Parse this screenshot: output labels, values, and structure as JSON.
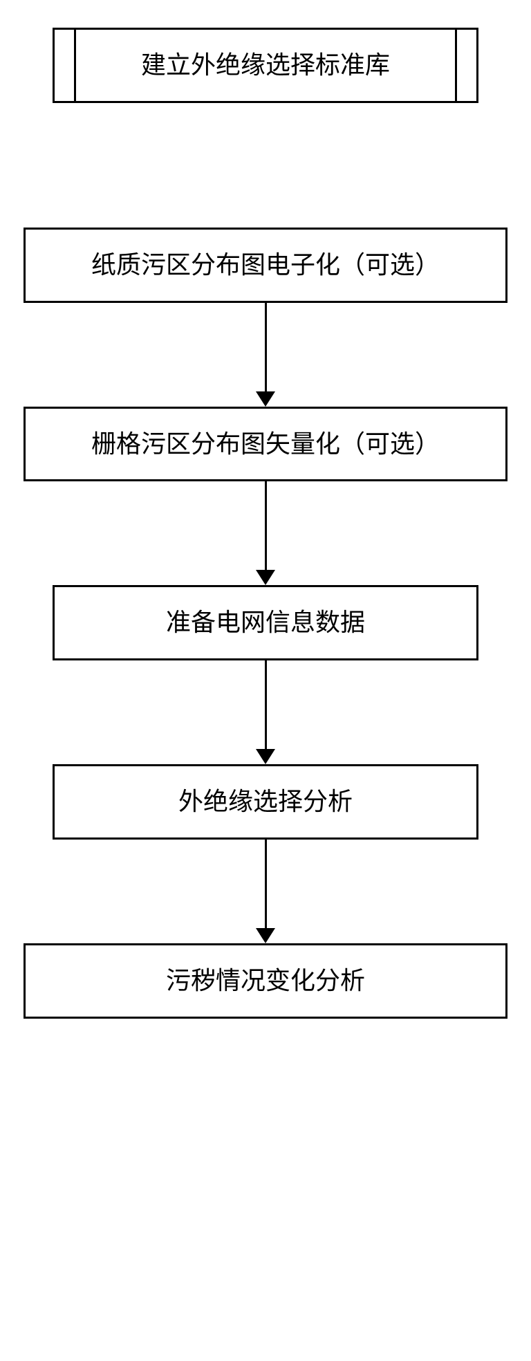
{
  "diagram": {
    "type": "flowchart",
    "direction": "vertical",
    "background_color": "#ffffff",
    "border_color": "#000000",
    "border_width": 3,
    "text_color": "#000000",
    "font_size": 36,
    "font_family": "SimSun",
    "nodes": [
      {
        "id": "node1",
        "label": "建立外绝缘选择标准库",
        "has_inner_marks": true,
        "connects_to_next": false
      },
      {
        "id": "node2",
        "label": "纸质污区分布图电子化（可选）",
        "connects_to_next": true
      },
      {
        "id": "node3",
        "label": "栅格污区分布图矢量化（可选）",
        "connects_to_next": true
      },
      {
        "id": "node4",
        "label": "准备电网信息数据",
        "connects_to_next": true
      },
      {
        "id": "node5",
        "label": "外绝缘选择分析",
        "connects_to_next": true
      },
      {
        "id": "node6",
        "label": "污秽情况变化分析",
        "connects_to_next": false
      }
    ],
    "arrow": {
      "line_width": 3,
      "head_width": 28,
      "head_height": 22,
      "color": "#000000"
    },
    "spacing": {
      "gap_no_arrow": 180,
      "gap_with_arrow": 150
    }
  }
}
